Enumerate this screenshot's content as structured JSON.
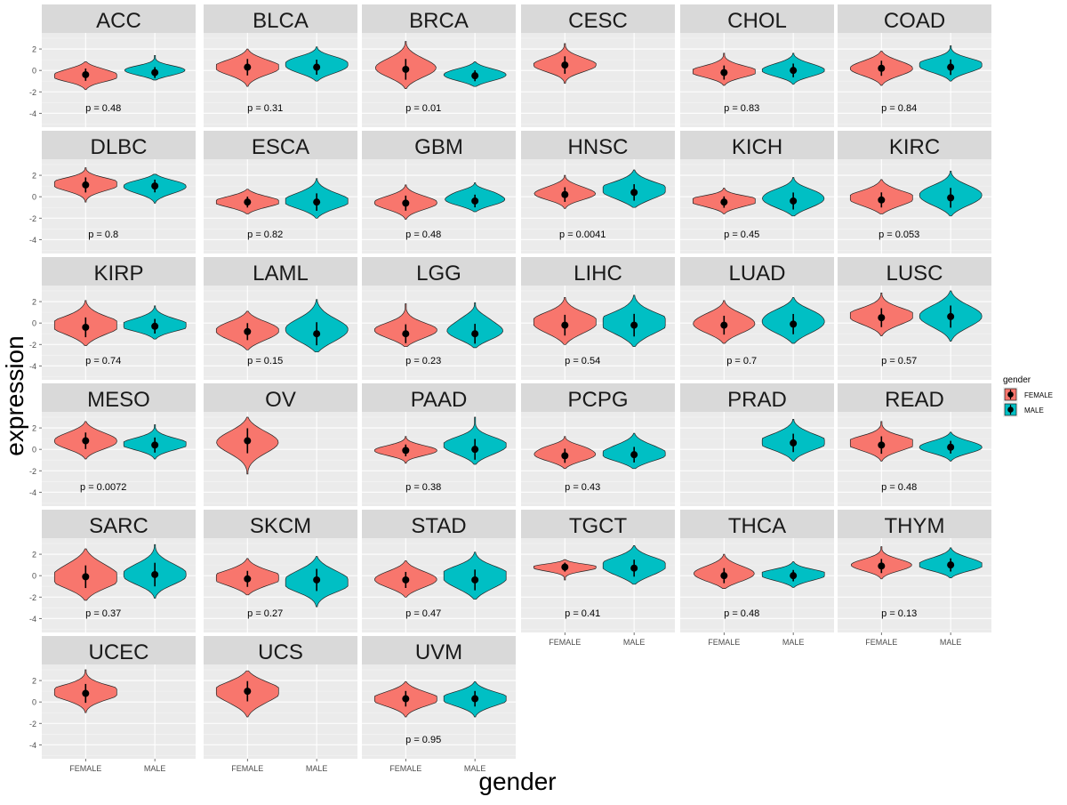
{
  "chart_data": {
    "type": "violin",
    "facet_by": "cancer type",
    "xlabel": "gender",
    "ylabel": "expression",
    "categories": [
      "FEMALE",
      "MALE"
    ],
    "y_ticks": [
      -4,
      -2,
      0,
      2
    ],
    "ylim": [
      -5.3,
      3.5
    ],
    "legend": {
      "title": "gender",
      "position": "right",
      "entries": [
        {
          "label": "FEMALE",
          "color": "#F8766D"
        },
        {
          "label": "MALE",
          "color": "#00BFC4"
        }
      ]
    },
    "panels": [
      {
        "name": "ACC",
        "p_label": "p = 0.48",
        "female": {
          "median": -0.4,
          "lo": -1.8,
          "hi": 0.8
        },
        "male": {
          "median": -0.2,
          "lo": -0.9,
          "hi": 1.4
        }
      },
      {
        "name": "BLCA",
        "p_label": "p = 0.31",
        "female": {
          "median": 0.3,
          "lo": -1.5,
          "hi": 2.0
        },
        "male": {
          "median": 0.3,
          "lo": -1.0,
          "hi": 2.2
        }
      },
      {
        "name": "BRCA",
        "p_label": "p = 0.01",
        "female": {
          "median": 0.1,
          "lo": -1.7,
          "hi": 2.7
        },
        "male": {
          "median": -0.5,
          "lo": -1.5,
          "hi": 0.8
        }
      },
      {
        "name": "CESC",
        "p_label": "",
        "female": {
          "median": 0.5,
          "lo": -1.2,
          "hi": 2.5
        },
        "male": null
      },
      {
        "name": "CHOL",
        "p_label": "p = 0.83",
        "female": {
          "median": -0.2,
          "lo": -1.4,
          "hi": 1.6
        },
        "male": {
          "median": 0.0,
          "lo": -1.3,
          "hi": 1.6
        }
      },
      {
        "name": "COAD",
        "p_label": "p = 0.84",
        "female": {
          "median": 0.2,
          "lo": -1.4,
          "hi": 1.8
        },
        "male": {
          "median": 0.3,
          "lo": -1.0,
          "hi": 2.3
        }
      },
      {
        "name": "DLBC",
        "p_label": "p = 0.8",
        "female": {
          "median": 1.1,
          "lo": -0.5,
          "hi": 2.7
        },
        "male": {
          "median": 1.0,
          "lo": -0.6,
          "hi": 2.1
        }
      },
      {
        "name": "ESCA",
        "p_label": "p = 0.82",
        "female": {
          "median": -0.5,
          "lo": -1.6,
          "hi": 0.7
        },
        "male": {
          "median": -0.5,
          "lo": -2.0,
          "hi": 1.7
        }
      },
      {
        "name": "GBM",
        "p_label": "p = 0.48",
        "female": {
          "median": -0.6,
          "lo": -2.1,
          "hi": 1.1
        },
        "male": {
          "median": -0.4,
          "lo": -1.4,
          "hi": 1.3
        }
      },
      {
        "name": "HNSC",
        "p_label": "p = 0.0041",
        "female": {
          "median": 0.2,
          "lo": -1.1,
          "hi": 2.0
        },
        "male": {
          "median": 0.4,
          "lo": -1.0,
          "hi": 2.5
        }
      },
      {
        "name": "KICH",
        "p_label": "p = 0.45",
        "female": {
          "median": -0.5,
          "lo": -1.6,
          "hi": 0.8
        },
        "male": {
          "median": -0.4,
          "lo": -1.8,
          "hi": 1.8
        }
      },
      {
        "name": "KIRC",
        "p_label": "p = 0.053",
        "female": {
          "median": -0.3,
          "lo": -1.6,
          "hi": 1.6
        },
        "male": {
          "median": -0.1,
          "lo": -1.8,
          "hi": 2.4
        }
      },
      {
        "name": "KIRP",
        "p_label": "p = 0.74",
        "female": {
          "median": -0.4,
          "lo": -2.1,
          "hi": 2.1
        },
        "male": {
          "median": -0.3,
          "lo": -1.5,
          "hi": 1.6
        }
      },
      {
        "name": "LAML",
        "p_label": "p = 0.15",
        "female": {
          "median": -0.8,
          "lo": -2.5,
          "hi": 1.1
        },
        "male": {
          "median": -1.0,
          "lo": -2.7,
          "hi": 2.2
        }
      },
      {
        "name": "LGG",
        "p_label": "p = 0.23",
        "female": {
          "median": -1.0,
          "lo": -2.2,
          "hi": 1.8
        },
        "male": {
          "median": -1.0,
          "lo": -2.3,
          "hi": 1.9
        }
      },
      {
        "name": "LIHC",
        "p_label": "p = 0.54",
        "female": {
          "median": -0.2,
          "lo": -2.0,
          "hi": 2.4
        },
        "male": {
          "median": -0.2,
          "lo": -2.2,
          "hi": 2.6
        }
      },
      {
        "name": "LUAD",
        "p_label": "p = 0.7",
        "female": {
          "median": -0.2,
          "lo": -1.9,
          "hi": 2.1
        },
        "male": {
          "median": -0.1,
          "lo": -1.9,
          "hi": 2.4
        }
      },
      {
        "name": "LUSC",
        "p_label": "p = 0.57",
        "female": {
          "median": 0.5,
          "lo": -1.2,
          "hi": 2.8
        },
        "male": {
          "median": 0.6,
          "lo": -1.7,
          "hi": 3.0
        }
      },
      {
        "name": "MESO",
        "p_label": "p = 0.0072",
        "female": {
          "median": 0.8,
          "lo": -0.9,
          "hi": 2.6
        },
        "male": {
          "median": 0.4,
          "lo": -0.9,
          "hi": 2.3
        }
      },
      {
        "name": "OV",
        "p_label": "",
        "female": {
          "median": 0.8,
          "lo": -2.3,
          "hi": 3.0
        },
        "male": null
      },
      {
        "name": "PAAD",
        "p_label": "p = 0.38",
        "female": {
          "median": -0.1,
          "lo": -1.3,
          "hi": 1.2
        },
        "male": {
          "median": 0.0,
          "lo": -1.4,
          "hi": 3.0
        }
      },
      {
        "name": "PCPG",
        "p_label": "p = 0.43",
        "female": {
          "median": -0.6,
          "lo": -1.8,
          "hi": 1.2
        },
        "male": {
          "median": -0.5,
          "lo": -1.8,
          "hi": 1.5
        }
      },
      {
        "name": "PRAD",
        "p_label": "",
        "female": null,
        "male": {
          "median": 0.6,
          "lo": -1.1,
          "hi": 2.8
        }
      },
      {
        "name": "READ",
        "p_label": "p = 0.48",
        "female": {
          "median": 0.4,
          "lo": -1.1,
          "hi": 2.6
        },
        "male": {
          "median": 0.2,
          "lo": -1.1,
          "hi": 1.6
        }
      },
      {
        "name": "SARC",
        "p_label": "p = 0.37",
        "female": {
          "median": -0.1,
          "lo": -2.3,
          "hi": 2.5
        },
        "male": {
          "median": 0.1,
          "lo": -2.1,
          "hi": 2.9
        }
      },
      {
        "name": "SKCM",
        "p_label": "p = 0.27",
        "female": {
          "median": -0.3,
          "lo": -1.8,
          "hi": 1.6
        },
        "male": {
          "median": -0.4,
          "lo": -2.9,
          "hi": 1.8
        }
      },
      {
        "name": "STAD",
        "p_label": "p = 0.47",
        "female": {
          "median": -0.4,
          "lo": -2.0,
          "hi": 1.4
        },
        "male": {
          "median": -0.4,
          "lo": -2.2,
          "hi": 2.2
        }
      },
      {
        "name": "TGCT",
        "p_label": "p = 0.41",
        "female": {
          "median": 0.8,
          "lo": -0.4,
          "hi": 1.5
        },
        "male": {
          "median": 0.7,
          "lo": -0.8,
          "hi": 2.8
        }
      },
      {
        "name": "THCA",
        "p_label": "p = 0.48",
        "female": {
          "median": 0.0,
          "lo": -1.2,
          "hi": 2.0
        },
        "male": {
          "median": 0.0,
          "lo": -1.1,
          "hi": 1.3
        }
      },
      {
        "name": "THYM",
        "p_label": "p = 0.13",
        "female": {
          "median": 0.9,
          "lo": -0.3,
          "hi": 2.7
        },
        "male": {
          "median": 1.0,
          "lo": -0.2,
          "hi": 2.6
        }
      },
      {
        "name": "UCEC",
        "p_label": "",
        "female": {
          "median": 0.8,
          "lo": -1.0,
          "hi": 3.0
        },
        "male": null
      },
      {
        "name": "UCS",
        "p_label": "",
        "female": {
          "median": 1.0,
          "lo": -1.4,
          "hi": 2.9
        },
        "male": null
      },
      {
        "name": "UVM",
        "p_label": "p = 0.95",
        "female": {
          "median": 0.3,
          "lo": -1.4,
          "hi": 1.9
        },
        "male": {
          "median": 0.3,
          "lo": -1.4,
          "hi": 1.9
        }
      }
    ]
  }
}
